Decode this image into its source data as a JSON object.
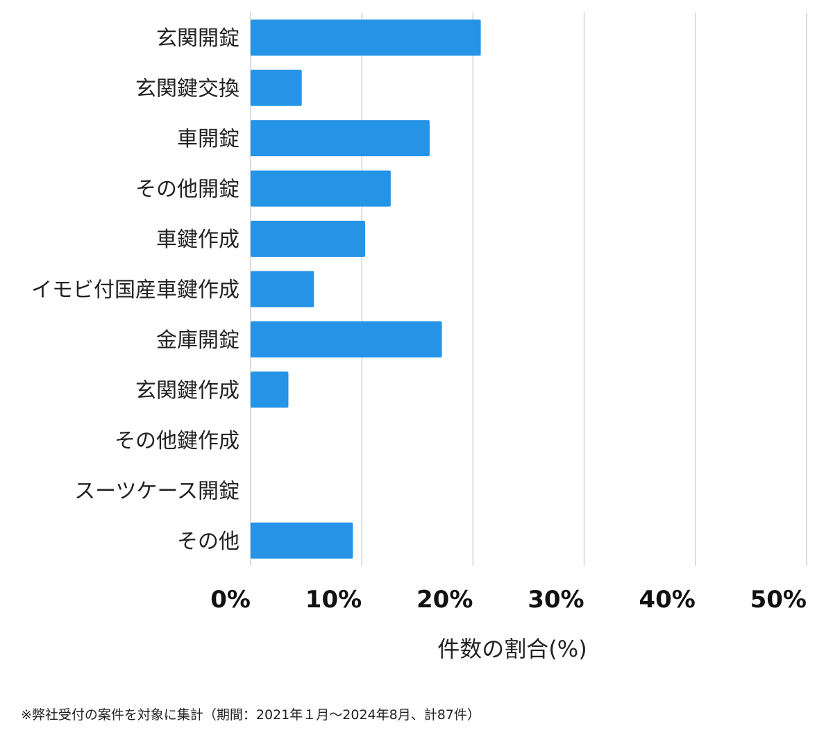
{
  "chart_data": {
    "type": "bar",
    "orientation": "horizontal",
    "categories": [
      "玄関開錠",
      "玄関鍵交換",
      "車開錠",
      "その他開錠",
      "車鍵作成",
      "イモビ付国産車鍵作成",
      "金庫開錠",
      "玄関鍵作成",
      "その他鍵作成",
      "スーツケース開錠",
      "その他"
    ],
    "values": [
      20.7,
      4.6,
      16.1,
      12.6,
      10.3,
      5.7,
      17.2,
      3.4,
      0,
      0,
      9.2
    ],
    "xlim": [
      0,
      50
    ],
    "x_ticks": [
      "0%",
      "10%",
      "20%",
      "30%",
      "40%",
      "50%"
    ],
    "xlabel": "件数の割合(%)",
    "ylabel": "",
    "grid": "vertical",
    "bar_color": "#2593e6"
  },
  "footnote": "※弊社受付の案件を対象に集計（期間：2021年１月〜2024年8月、計87件）"
}
